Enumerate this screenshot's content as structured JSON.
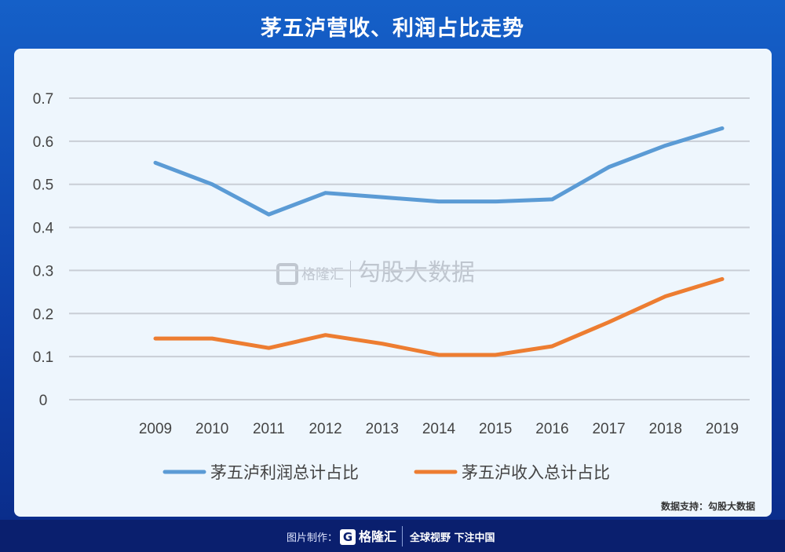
{
  "title": "茅五泸营收、利润占比走势",
  "source": "数据支持：勾股大数据",
  "watermark": {
    "brand": "格隆汇",
    "text": "勾股大数据"
  },
  "footer": {
    "made_by": "图片制作：",
    "brand": "格隆汇",
    "slogan": "全球视野 下注中国"
  },
  "colors": {
    "profit": "#5b9bd5",
    "revenue": "#ed7d31",
    "grid": "#c9ced6"
  },
  "chart_data": {
    "type": "line",
    "title": "茅五泸营收、利润占比走势",
    "x": [
      "2009",
      "2010",
      "2011",
      "2012",
      "2013",
      "2014",
      "2015",
      "2016",
      "2017",
      "2018",
      "2019"
    ],
    "yticks": [
      "0",
      "0.1",
      "0.2",
      "0.3",
      "0.4",
      "0.5",
      "0.6",
      "0.7"
    ],
    "ylim": [
      0,
      0.7
    ],
    "grid": true,
    "legend": "bottom",
    "series": [
      {
        "name": "茅五泸利润总计占比",
        "color": "#5b9bd5",
        "values": [
          0.55,
          0.5,
          0.43,
          0.48,
          0.47,
          0.46,
          0.46,
          0.465,
          0.54,
          0.59,
          0.63
        ]
      },
      {
        "name": "茅五泸收入总计占比",
        "color": "#ed7d31",
        "values": [
          0.142,
          0.142,
          0.12,
          0.15,
          0.13,
          0.104,
          0.104,
          0.124,
          0.18,
          0.24,
          0.28
        ]
      }
    ]
  }
}
